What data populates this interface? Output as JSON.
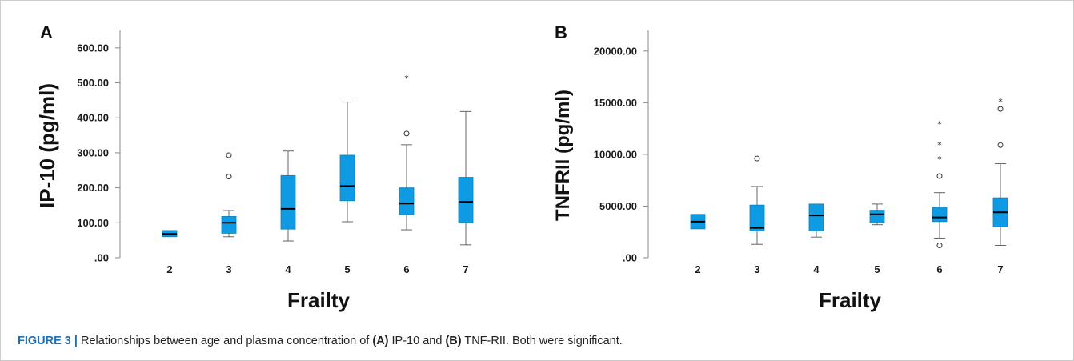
{
  "caption": {
    "label": "FIGURE 3 |",
    "text_1": " Relationships between age and plasma concentration of ",
    "tag_a": "(A)",
    "text_2": " IP-10 and ",
    "tag_b": "(B)",
    "text_3": " TNF-RII. Both were significant."
  },
  "colors": {
    "box_fill": "#0f9be3",
    "median": "#000000",
    "whisker": "#666666"
  },
  "chart_data": [
    {
      "type": "box",
      "panel_label": "A",
      "xlabel": "Frailty",
      "ylabel": "IP-10 (pg/ml)",
      "ylim": [
        0,
        650
      ],
      "y_ticks": [
        ".00",
        "100.00",
        "200.00",
        "300.00",
        "400.00",
        "500.00",
        "600.00"
      ],
      "y_tick_values": [
        0,
        100,
        200,
        300,
        400,
        500,
        600
      ],
      "categories": [
        "2",
        "3",
        "4",
        "5",
        "6",
        "7"
      ],
      "boxes": [
        {
          "category": "2",
          "whisker_low": 60,
          "q1": 60,
          "median": 68,
          "q3": 78,
          "whisker_high": 78,
          "outliers": [],
          "extremes": []
        },
        {
          "category": "3",
          "whisker_low": 60,
          "q1": 70,
          "median": 100,
          "q3": 118,
          "whisker_high": 135,
          "outliers": [
            232,
            293
          ],
          "extremes": []
        },
        {
          "category": "4",
          "whisker_low": 48,
          "q1": 82,
          "median": 140,
          "q3": 235,
          "whisker_high": 305,
          "outliers": [],
          "extremes": []
        },
        {
          "category": "5",
          "whisker_low": 103,
          "q1": 163,
          "median": 205,
          "q3": 293,
          "whisker_high": 445,
          "outliers": [],
          "extremes": []
        },
        {
          "category": "6",
          "whisker_low": 80,
          "q1": 123,
          "median": 155,
          "q3": 200,
          "whisker_high": 323,
          "outliers": [
            355
          ],
          "extremes": [
            515
          ]
        },
        {
          "category": "7",
          "whisker_low": 37,
          "q1": 100,
          "median": 160,
          "q3": 230,
          "whisker_high": 418,
          "outliers": [],
          "extremes": []
        }
      ]
    },
    {
      "type": "box",
      "panel_label": "B",
      "xlabel": "Frailty",
      "ylabel": "TNFRII (pg/ml)",
      "ylim": [
        0,
        22000
      ],
      "y_ticks": [
        ".00",
        "5000.00",
        "10000.00",
        "15000.00",
        "20000.00"
      ],
      "y_tick_values": [
        0,
        5000,
        10000,
        15000,
        20000
      ],
      "categories": [
        "2",
        "3",
        "4",
        "5",
        "6",
        "7"
      ],
      "boxes": [
        {
          "category": "2",
          "whisker_low": 2800,
          "q1": 2800,
          "median": 3500,
          "q3": 4200,
          "whisker_high": 4200,
          "outliers": [],
          "extremes": []
        },
        {
          "category": "3",
          "whisker_low": 1300,
          "q1": 2600,
          "median": 2900,
          "q3": 5100,
          "whisker_high": 6900,
          "outliers": [
            9600
          ],
          "extremes": []
        },
        {
          "category": "4",
          "whisker_low": 2000,
          "q1": 2600,
          "median": 4100,
          "q3": 5200,
          "whisker_high": 5200,
          "outliers": [],
          "extremes": []
        },
        {
          "category": "5",
          "whisker_low": 3200,
          "q1": 3400,
          "median": 4200,
          "q3": 4600,
          "whisker_high": 5200,
          "outliers": [],
          "extremes": []
        },
        {
          "category": "6",
          "whisker_low": 1900,
          "q1": 3500,
          "median": 3900,
          "q3": 4900,
          "whisker_high": 6300,
          "outliers": [
            1200,
            7900
          ],
          "extremes": [
            9600,
            11000,
            13000
          ]
        },
        {
          "category": "7",
          "whisker_low": 1200,
          "q1": 3000,
          "median": 4400,
          "q3": 5800,
          "whisker_high": 9100,
          "outliers": [
            10900,
            14400
          ],
          "extremes": [
            15200
          ]
        }
      ]
    }
  ]
}
